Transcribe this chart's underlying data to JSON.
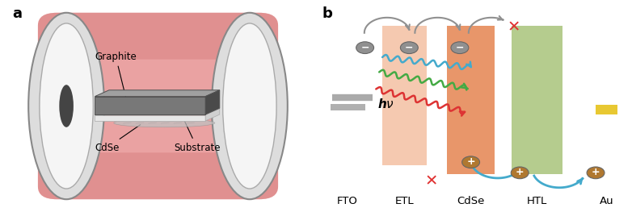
{
  "panel_a_label": "a",
  "panel_b_label": "b",
  "tube_color": "#E89898",
  "graphite_label": "Graphite",
  "cdse_label": "CdSe",
  "substrate_label": "Substrate",
  "hv_label": "hν",
  "layer_labels": [
    "FTO",
    "ETL",
    "CdSe",
    "HTL",
    "Au"
  ],
  "etl_color": "#F5C9B0",
  "cdse_color": "#E8966A",
  "htl_color": "#B5CC8E",
  "au_color": "#E8C832",
  "electron_color": "#909090",
  "hole_color": "#B07830",
  "red_x_color": "#E03030",
  "blue_arrow": "#44AACC",
  "red_arrow": "#DD3333",
  "green_arrow": "#44AA44"
}
